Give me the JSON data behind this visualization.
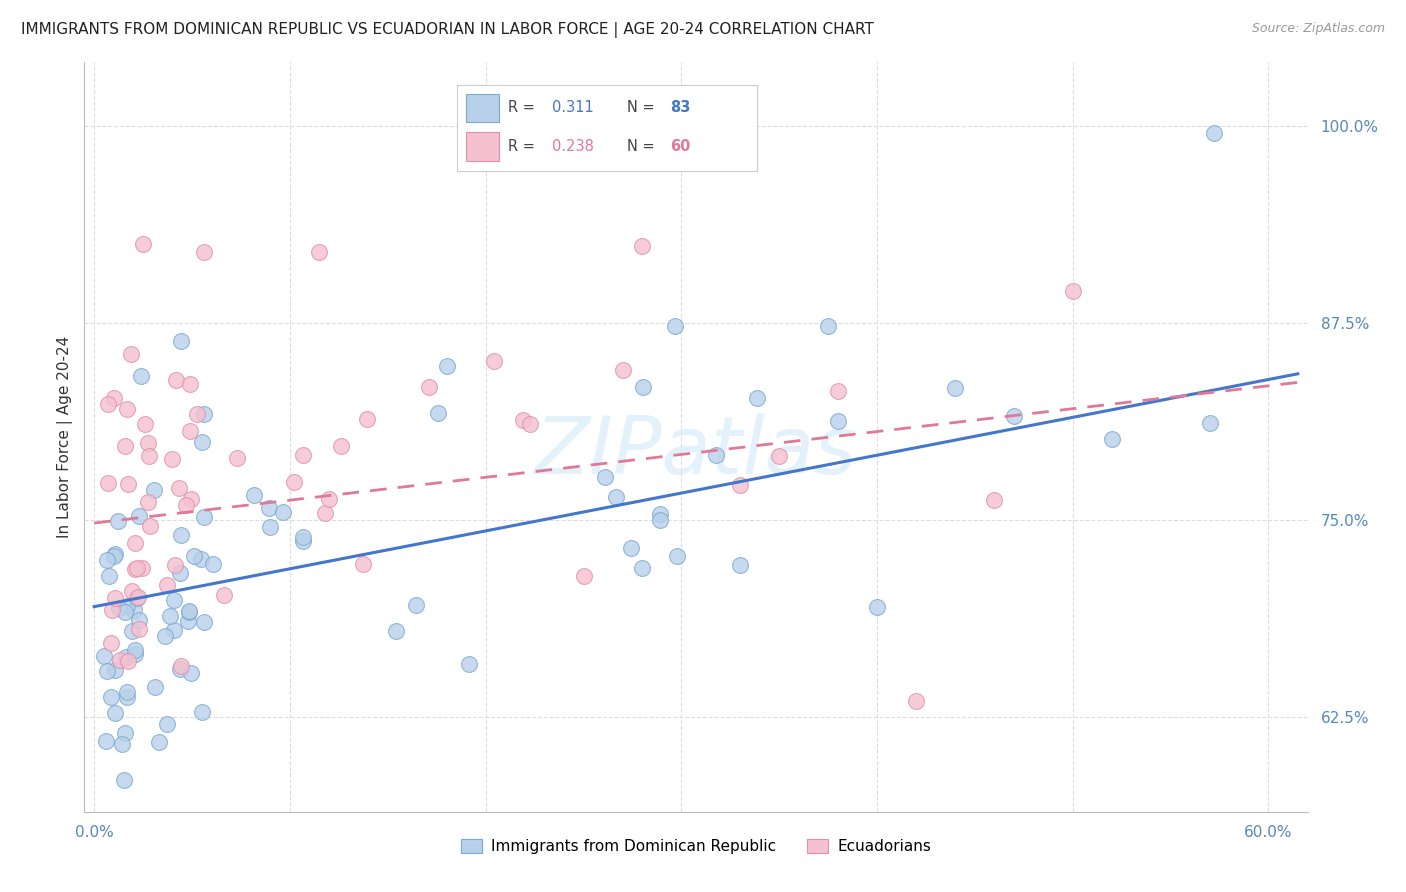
{
  "title": "IMMIGRANTS FROM DOMINICAN REPUBLIC VS ECUADORIAN IN LABOR FORCE | AGE 20-24 CORRELATION CHART",
  "source": "Source: ZipAtlas.com",
  "ylabel": "In Labor Force | Age 20-24",
  "xlim": [
    -0.005,
    0.62
  ],
  "ylim": [
    0.565,
    1.04
  ],
  "xticks": [
    0.0,
    0.1,
    0.2,
    0.3,
    0.4,
    0.5,
    0.6
  ],
  "xticklabels": [
    "0.0%",
    "",
    "",
    "",
    "",
    "",
    "60.0%"
  ],
  "yticks_right": [
    0.625,
    0.75,
    0.875,
    1.0
  ],
  "ytick_right_labels": [
    "62.5%",
    "75.0%",
    "87.5%",
    "100.0%"
  ],
  "blue_fill": "#b8d0ea",
  "blue_edge": "#7aaad0",
  "pink_fill": "#f5c0d0",
  "pink_edge": "#e090a8",
  "blue_line_color": "#4477cc",
  "pink_line_color": "#e07898",
  "legend_r_blue": "0.311",
  "legend_n_blue": "83",
  "legend_r_pink": "0.238",
  "legend_n_pink": "60",
  "legend_label_blue": "Immigrants from Dominican Republic",
  "legend_label_pink": "Ecuadorians",
  "watermark": "ZIPatlas",
  "grid_color": "#dddddd",
  "bg_color": "#ffffff",
  "title_fontsize": 11,
  "blue_intercept": 0.695,
  "blue_slope": 0.24,
  "pink_intercept": 0.748,
  "pink_slope": 0.145
}
